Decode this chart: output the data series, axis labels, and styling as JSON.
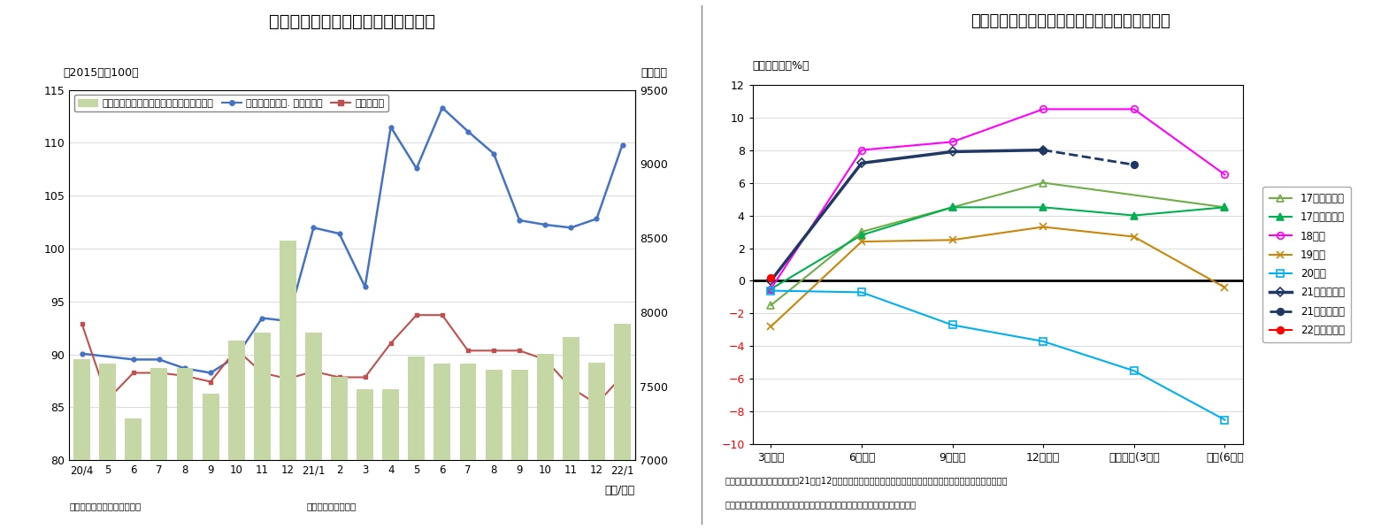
{
  "chart8": {
    "title": "（図表８）設備投資関連指標の動向",
    "subtitle_left": "（2015年＝100）",
    "subtitle_right": "（億円）",
    "xlabel": "（年/月）",
    "note1": "（資料）経済産業省、内閣府",
    "note2": "（注）季節調整済み",
    "x_labels": [
      "20/4",
      "5",
      "6",
      "7",
      "8",
      "9",
      "10",
      "11",
      "12",
      "21/1",
      "2",
      "3",
      "4",
      "5",
      "6",
      "7",
      "8",
      "9",
      "10",
      "11",
      "12",
      "22/1"
    ],
    "bar_color": "#c5d7a5",
    "bar_right_vals": [
      7680,
      7650,
      7280,
      7620,
      7620,
      7450,
      7810,
      7860,
      8480,
      7860,
      7560,
      7480,
      7480,
      7700,
      7650,
      7650,
      7610,
      7610,
      7720,
      7830,
      7660,
      7920
    ],
    "line_blue": [
      7720,
      null,
      7680,
      7680,
      7620,
      7590,
      7700,
      7960,
      7940,
      8570,
      8530,
      8170,
      9250,
      8970,
      9380,
      9220,
      9070,
      8620,
      8590,
      8570,
      8630,
      9130
    ],
    "line_red": [
      7920,
      7410,
      7590,
      7590,
      7570,
      7530,
      7750,
      7590,
      7550,
      7600,
      7560,
      7560,
      7790,
      7980,
      7980,
      7740,
      7740,
      7740,
      7680,
      7490,
      7380,
      7570
    ],
    "line_blue_color": "#4472c4",
    "line_red_color": "#c0504d",
    "ylim_right": [
      7000,
      9500
    ],
    "ylim_left": [
      80,
      115
    ],
    "yticks_left": [
      80,
      85,
      90,
      95,
      100,
      105,
      110,
      115
    ],
    "yticks_right": [
      7000,
      7500,
      8000,
      8500,
      9000,
      9500
    ],
    "legend_bar": "機械受注（船舶・電力を除く民需、右軸）",
    "legend_blue": "資本財出荷（除. 輸送機械）",
    "legend_red": "建設財出荷"
  },
  "chart9": {
    "title": "（図表９）設備投資計画推移（全規模全産業）",
    "subtitle": "（対前年比、%）",
    "note1": "（注）リース会計対応ベース。21年度12月調査は新旧併記、その後は新ベース（対象見直し後）、点線は今回予測",
    "note2": "（資料）日本銀行「全国企業短期経済観測調査」、予測値はニッセイ基礎研究所",
    "x_labels": [
      "3月調査",
      "6月調査",
      "9月調査",
      "12月調査",
      "実績見込(3月）",
      "実績(6月）"
    ],
    "ylim": [
      -10,
      12
    ],
    "yticks": [
      -10,
      -8,
      -6,
      -4,
      -2,
      0,
      2,
      4,
      6,
      8,
      10,
      12
    ],
    "series": [
      {
        "name": "17年度（旧）",
        "values": [
          -1.5,
          3.0,
          4.5,
          6.0,
          null,
          4.5
        ],
        "color": "#70ad47",
        "marker": "^",
        "markerfacecolor": "none",
        "linestyle": "-",
        "linewidth": 1.5
      },
      {
        "name": "17年度（新）",
        "values": [
          -0.5,
          2.8,
          4.5,
          4.5,
          4.0,
          4.5
        ],
        "color": "#00b050",
        "marker": "^",
        "markerfacecolor": "#00b050",
        "linestyle": "-",
        "linewidth": 1.5
      },
      {
        "name": "18年度",
        "values": [
          -0.5,
          8.0,
          8.5,
          10.5,
          10.5,
          6.5
        ],
        "color": "#ff00ff",
        "marker": "o",
        "markerfacecolor": "none",
        "linestyle": "-",
        "linewidth": 1.5
      },
      {
        "name": "19年度",
        "values": [
          -2.8,
          2.4,
          2.5,
          3.3,
          2.7,
          -0.4
        ],
        "color": "#c8860a",
        "marker": "x",
        "markerfacecolor": "#c8860a",
        "linestyle": "-",
        "linewidth": 1.5
      },
      {
        "name": "20年度",
        "values": [
          -0.6,
          -0.7,
          -2.7,
          -3.7,
          -5.5,
          -8.5
        ],
        "color": "#00b0f0",
        "marker": "s",
        "markerfacecolor": "none",
        "linestyle": "-",
        "linewidth": 1.5
      },
      {
        "name": "21年度（旧）",
        "values": [
          0.0,
          7.2,
          7.9,
          8.0,
          null,
          null
        ],
        "color": "#1f3864",
        "marker": "D",
        "markerfacecolor": "none",
        "linestyle": "-",
        "linewidth": 2.5
      },
      {
        "name": "21年度（新）",
        "values": [
          null,
          null,
          null,
          8.0,
          7.1,
          null
        ],
        "color": "#1f3864",
        "marker": "o",
        "markerfacecolor": "#1f3864",
        "linestyle": "--",
        "linewidth": 2.0
      },
      {
        "name": "22年度（新）",
        "values": [
          0.2,
          null,
          null,
          null,
          null,
          null
        ],
        "color": "#ff0000",
        "marker": "o",
        "markerfacecolor": "#ff0000",
        "linestyle": "-",
        "linewidth": 1.5
      }
    ]
  }
}
